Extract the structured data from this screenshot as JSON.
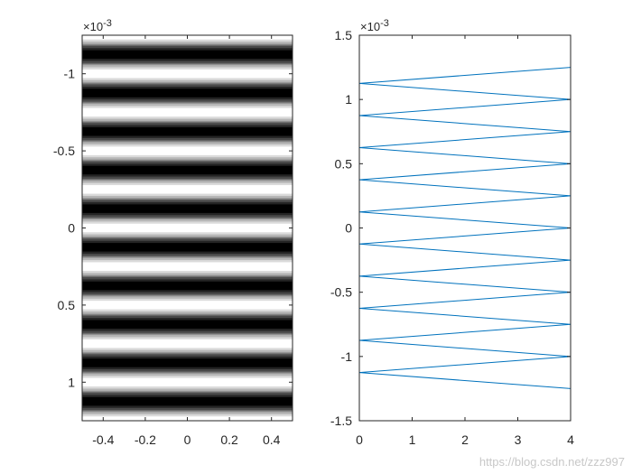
{
  "chart_data": [
    {
      "type": "heatmap",
      "colormap": "gray",
      "pattern": "cos^2 fringes along y (horizontal bands), 8 gray levels",
      "fringe_period": 0.00025,
      "xlim": [
        -0.5,
        0.5
      ],
      "ylim": [
        -0.00125,
        0.00125
      ],
      "y_reversed": true,
      "x_ticks": [
        -0.4,
        -0.2,
        0,
        0.2,
        0.4
      ],
      "x_tick_labels": [
        "-0.4",
        "-0.2",
        "0",
        "0.2",
        "0.4"
      ],
      "y_ticks": [
        -0.001,
        -0.0005,
        0,
        0.0005,
        0.001
      ],
      "y_tick_labels": [
        "-1",
        "-0.5",
        "0",
        "0.5",
        "1"
      ],
      "y_exponent_label": "×10-3",
      "grid": false
    },
    {
      "type": "line",
      "series": [
        {
          "color": "#0072BD",
          "x": [
            4.0,
            0.0,
            4.0,
            0.0,
            4.0,
            0.0,
            4.0,
            0.0,
            4.0,
            0.0,
            4.0,
            0.0,
            4.0,
            0.0,
            4.0,
            0.0,
            4.0,
            0.0,
            4.0,
            0.0,
            4.0
          ],
          "y": [
            -0.00125,
            -0.001125,
            -0.001,
            -0.000875,
            -0.00075,
            -0.000625,
            -0.0005,
            -0.000375,
            -0.00025,
            -0.000125,
            0.0,
            0.000125,
            0.00025,
            0.000375,
            0.0005,
            0.000625,
            0.00075,
            0.000875,
            0.001,
            0.001125,
            0.00125
          ]
        }
      ],
      "xlim": [
        0,
        4
      ],
      "ylim": [
        -0.0015,
        0.0015
      ],
      "x_ticks": [
        0,
        1,
        2,
        3,
        4
      ],
      "x_tick_labels": [
        "0",
        "1",
        "2",
        "3",
        "4"
      ],
      "y_ticks": [
        -0.0015,
        -0.001,
        -0.0005,
        0,
        0.0005,
        0.001,
        0.0015
      ],
      "y_tick_labels": [
        "-1.5",
        "-1",
        "-0.5",
        "0",
        "0.5",
        "1",
        "1.5"
      ],
      "y_exponent_label": "×10-3",
      "grid": false
    }
  ],
  "watermark": "https://blog.csdn.net/zzz997"
}
